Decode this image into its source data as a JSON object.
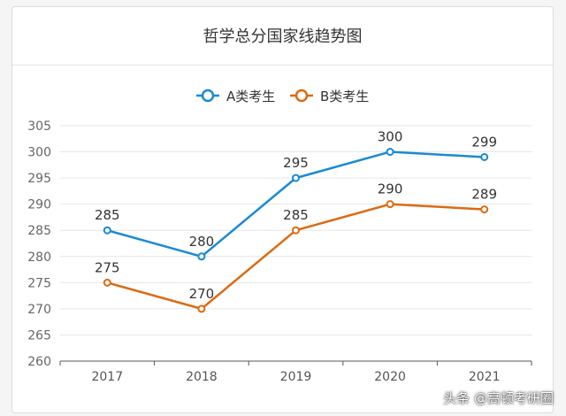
{
  "chart_data": {
    "type": "line",
    "title": "哲学总分国家线趋势图",
    "categories": [
      "2017",
      "2018",
      "2019",
      "2020",
      "2021"
    ],
    "series": [
      {
        "name": "A类考生",
        "values": [
          285,
          280,
          295,
          300,
          299
        ],
        "color": "#1a8ad4"
      },
      {
        "name": "B类考生",
        "values": [
          275,
          270,
          285,
          290,
          289
        ],
        "color": "#dd6a12"
      }
    ],
    "ylim": [
      260,
      305
    ],
    "yticks": [
      260,
      265,
      270,
      275,
      280,
      285,
      290,
      295,
      300,
      305
    ],
    "grid": true,
    "legend_position": "top-center",
    "data_labels": true
  },
  "watermark": "头条 @高顿考研圈"
}
